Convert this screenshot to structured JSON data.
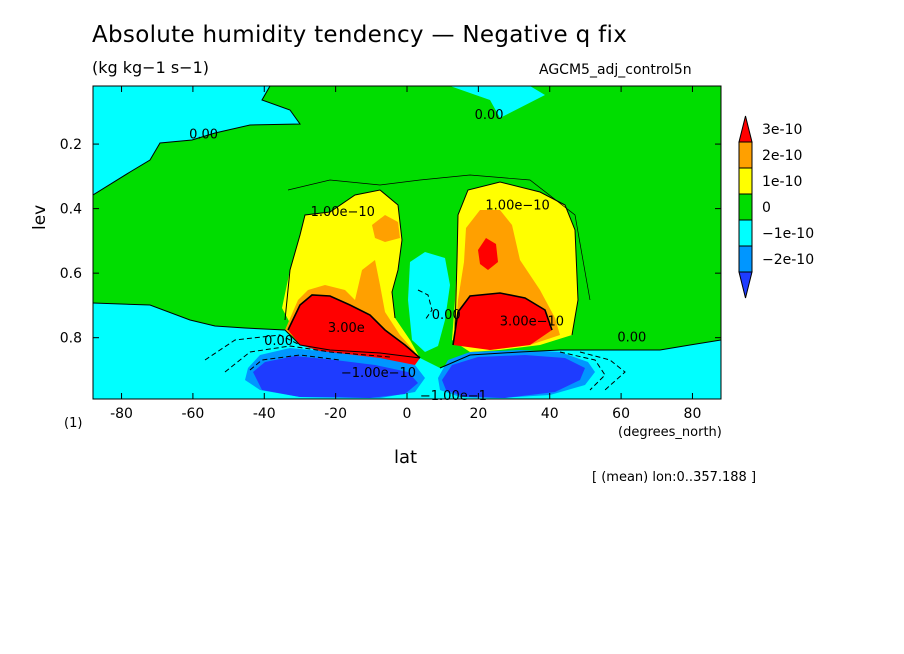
{
  "title": "Absolute humidity tendency — Negative q fix",
  "units": "(kg kg−1 s−1)",
  "run_name": "AGCM5_adj_control5n",
  "note_1": "(1)",
  "mean_lon": "[ (mean) lon:0..357.188 ]",
  "colors": {
    "above_3e-10": "#ff0000",
    "2e-10_to_3e-10": "#ffa000",
    "1e-10_to_2e-10": "#ffff00",
    "0_to_1e-10": "#00dd00",
    "minus1e-10_to_0": "#00ffff",
    "minus2e-10_to_minus1e-10": "#0096ff",
    "below_minus2e-10": "#1e3cff"
  },
  "chart_data": {
    "type": "heatmap",
    "subtype": "filled-contour",
    "xlabel": "lat",
    "xunits": "(degrees_north)",
    "ylabel": "lev",
    "xlim": [
      -88,
      88
    ],
    "ylim": [
      0.02,
      0.99
    ],
    "y_inverted": true,
    "x_ticks": [
      -80,
      -60,
      -40,
      -20,
      0,
      20,
      40,
      60,
      80
    ],
    "y_ticks": [
      0.2,
      0.4,
      0.6,
      0.8
    ],
    "colorbar": {
      "levels": [
        "3e-10",
        "2e-10",
        "1e-10",
        "0",
        "−1e-10",
        "−2e-10"
      ],
      "colors": [
        "#ff0000",
        "#ffa000",
        "#ffff00",
        "#00dd00",
        "#00ffff",
        "#0096ff",
        "#1e3cff"
      ],
      "extend": "both"
    },
    "contour_labels": [
      {
        "text": "0.00",
        "lat": -57,
        "lev": 0.17
      },
      {
        "text": "0.00",
        "lat": 23,
        "lev": 0.11
      },
      {
        "text": "1.00e−10",
        "lat": -18,
        "lev": 0.41
      },
      {
        "text": "1.00e−10",
        "lat": 31,
        "lev": 0.39
      },
      {
        "text": "0.00",
        "lat": -36,
        "lev": 0.81
      },
      {
        "text": "0.00",
        "lat": 63,
        "lev": 0.8
      },
      {
        "text": "0.00",
        "lat": 11,
        "lev": 0.73
      },
      {
        "text": "3.00e",
        "lat": -17,
        "lev": 0.77
      },
      {
        "text": "3.00e−10",
        "lat": 35,
        "lev": 0.75
      },
      {
        "text": "−1.00e−10",
        "lat": -8,
        "lev": 0.91
      },
      {
        "text": "−1.00e−1",
        "lat": 13,
        "lev": 0.98
      }
    ],
    "grid": false
  }
}
